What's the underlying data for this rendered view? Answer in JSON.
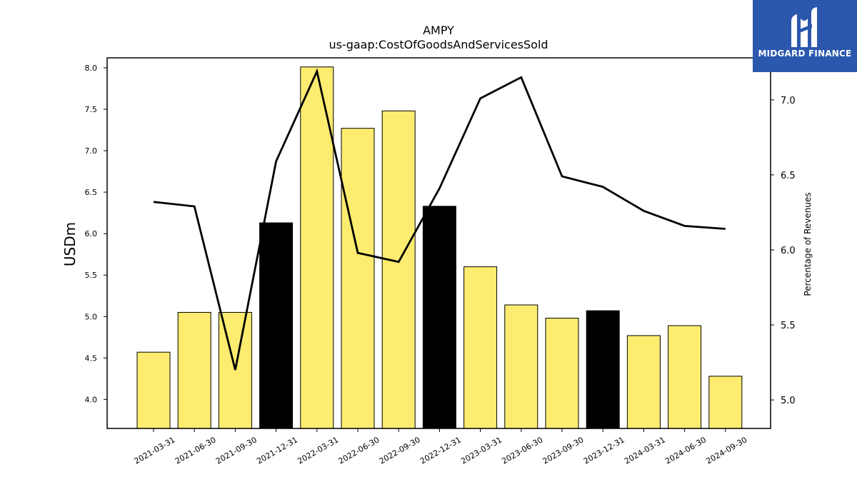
{
  "chart_data": {
    "type": "bar",
    "title": "AMPY",
    "subtitle": "us-gaap:CostOfGoodsAndServicesSold",
    "ylabel": "USDm",
    "y2label": "Percentage of Revenues",
    "ylim": [
      3.65,
      8.12
    ],
    "y2lim": [
      4.81,
      7.28
    ],
    "yticks": [
      "4.0",
      "4.5",
      "5.0",
      "5.5",
      "6.0",
      "6.5",
      "7.0",
      "7.5",
      "8.0"
    ],
    "y2ticks": [
      "5.0",
      "5.5",
      "6.0",
      "6.5",
      "7.0"
    ],
    "categories": [
      "2021-03-31",
      "2021-06-30",
      "2021-09-30",
      "2021-12-31",
      "2022-03-31",
      "2022-06-30",
      "2022-09-30",
      "2022-12-31",
      "2023-03-31",
      "2023-06-30",
      "2023-09-30",
      "2023-12-31",
      "2024-03-31",
      "2024-06-30",
      "2024-09-30"
    ],
    "series": [
      {
        "type": "bar",
        "axis": "left",
        "values": [
          4.57,
          5.05,
          5.05,
          6.13,
          8.01,
          7.27,
          7.48,
          6.33,
          5.6,
          5.14,
          4.98,
          5.07,
          4.77,
          4.89,
          4.28
        ],
        "colors": [
          "#fdec6f",
          "#fdec6f",
          "#fdec6f",
          "#000000",
          "#fdec6f",
          "#fdec6f",
          "#fdec6f",
          "#000000",
          "#fdec6f",
          "#fdec6f",
          "#fdec6f",
          "#000000",
          "#fdec6f",
          "#fdec6f",
          "#fdec6f"
        ]
      },
      {
        "type": "line",
        "axis": "right",
        "values": [
          6.32,
          6.29,
          5.2,
          6.59,
          7.19,
          5.98,
          5.92,
          6.41,
          7.01,
          7.15,
          6.49,
          6.42,
          6.26,
          6.16,
          6.14
        ],
        "color": "#000000"
      }
    ],
    "grid": false,
    "legend": "none"
  },
  "logo": {
    "text": "MIDGARD FINANCE",
    "background": "#2b57ad"
  }
}
